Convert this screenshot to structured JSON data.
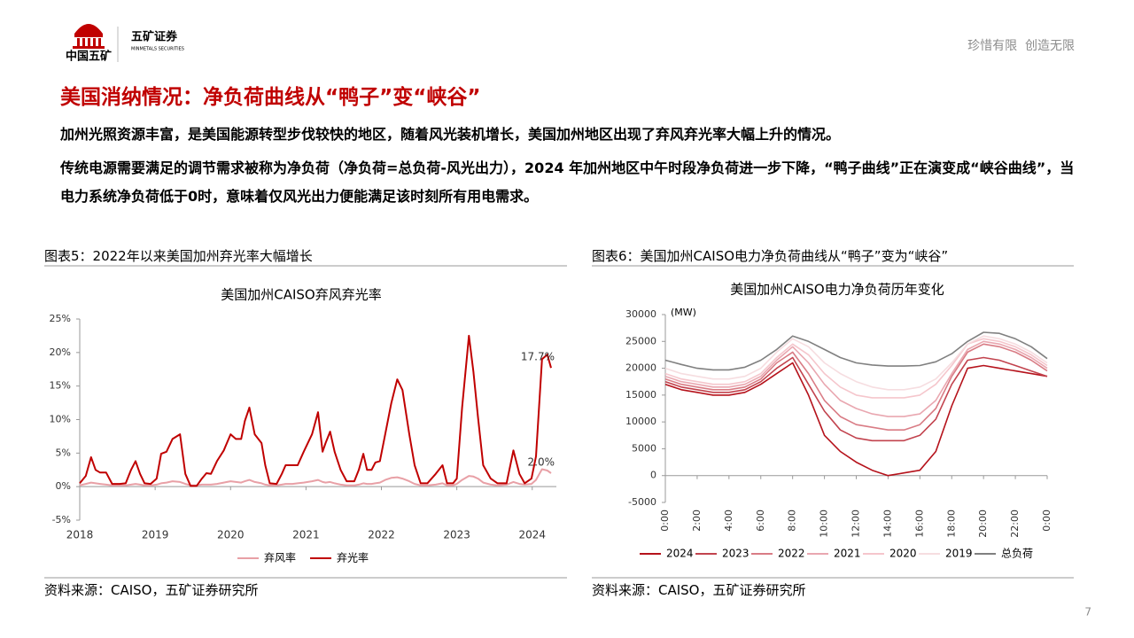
{
  "header": {
    "company": "中国五矿",
    "brand": "五矿证券",
    "brand_en": "MINMETALS SECURITIES",
    "slogan": "珍惜有限  创造无限"
  },
  "title": "美国消纳情况：净负荷曲线从“鸭子”变“峡谷”",
  "paragraphs": [
    "加州光照资源丰富，是美国能源转型步伐较快的地区，随着风光装机增长，美国加州地区出现了弃风弃光率大幅上升的情况。",
    "传统电源需要满足的调节需求被称为净负荷（净负荷=总负荷-风光出力），2024 年加州地区中午时段净负荷进一步下降，“鸭子曲线”正在演变成“峡谷曲线”，当电力系统净负荷低于0时，意味着仅风光出力便能满足该时刻所有用电需求。"
  ],
  "figures": [
    {
      "caption": "图表5：2022年以来美国加州弃光率大幅增长",
      "source": "资料来源：CAISO，五矿证券研究所"
    },
    {
      "caption": "图表6：美国加州CAISO电力净负荷曲线从“鸭子”变为“峡谷”",
      "source": "资料来源：CAISO，五矿证券研究所"
    }
  ],
  "page_number": 7,
  "chart_data": [
    {
      "type": "line",
      "title": "美国加州CAISO弃风弃光率",
      "x": [
        2018.0,
        2018.08,
        2018.15,
        2018.21,
        2018.27,
        2018.35,
        2018.43,
        2018.53,
        2018.61,
        2018.68,
        2018.74,
        2018.8,
        2018.86,
        2018.94,
        2019.02,
        2019.08,
        2019.15,
        2019.23,
        2019.33,
        2019.4,
        2019.47,
        2019.55,
        2019.62,
        2019.68,
        2019.74,
        2019.82,
        2019.91,
        2020.0,
        2020.07,
        2020.14,
        2020.19,
        2020.25,
        2020.32,
        2020.41,
        2020.46,
        2020.52,
        2020.61,
        2020.68,
        2020.73,
        2020.82,
        2020.89,
        2020.97,
        2021.08,
        2021.16,
        2021.22,
        2021.26,
        2021.32,
        2021.38,
        2021.46,
        2021.54,
        2021.64,
        2021.7,
        2021.76,
        2021.81,
        2021.87,
        2021.92,
        2021.98,
        2022.05,
        2022.13,
        2022.21,
        2022.28,
        2022.37,
        2022.44,
        2022.52,
        2022.61,
        2022.72,
        2022.81,
        2022.87,
        2022.95,
        2023.0,
        2023.07,
        2023.16,
        2023.22,
        2023.28,
        2023.35,
        2023.45,
        2023.54,
        2023.66,
        2023.75,
        2023.83,
        2023.9,
        2023.99,
        2024.05,
        2024.13,
        2024.2,
        2024.25
      ],
      "series": [
        {
          "name": "弃风率",
          "color": "#e8a0a6",
          "values": [
            0.2,
            0.4,
            0.6,
            0.5,
            0.4,
            0.3,
            0.2,
            0.2,
            0.2,
            0.3,
            0.4,
            0.3,
            0.2,
            0.2,
            0.3,
            0.5,
            0.6,
            0.8,
            0.7,
            0.4,
            0.2,
            0.2,
            0.3,
            0.3,
            0.3,
            0.4,
            0.6,
            0.8,
            0.7,
            0.6,
            0.8,
            1.0,
            0.7,
            0.5,
            0.3,
            0.2,
            0.2,
            0.3,
            0.4,
            0.4,
            0.5,
            0.6,
            0.8,
            1.0,
            0.7,
            0.6,
            0.7,
            0.5,
            0.3,
            0.2,
            0.2,
            0.3,
            0.5,
            0.4,
            0.4,
            0.5,
            0.6,
            1.0,
            1.3,
            1.4,
            1.2,
            0.8,
            0.4,
            0.2,
            0.2,
            0.3,
            0.5,
            0.2,
            0.2,
            0.4,
            1.0,
            1.6,
            1.5,
            1.2,
            0.6,
            0.3,
            0.2,
            0.3,
            0.7,
            0.4,
            0.3,
            0.4,
            1.0,
            2.6,
            2.4,
            2.0
          ],
          "value_labels": {
            "85": "2.0%"
          }
        },
        {
          "name": "弃光率",
          "color": "#c00000",
          "values": [
            0.5,
            1.6,
            4.4,
            2.5,
            2.1,
            2.1,
            0.4,
            0.4,
            0.5,
            2.5,
            3.8,
            1.9,
            0.5,
            0.4,
            1.2,
            4.9,
            5.2,
            7.1,
            7.8,
            1.9,
            0.1,
            0.1,
            1.2,
            2.0,
            1.9,
            3.8,
            5.4,
            7.8,
            7.1,
            7.1,
            9.8,
            11.8,
            7.8,
            6.5,
            3.2,
            0.5,
            0.4,
            1.9,
            3.2,
            3.2,
            3.2,
            5.2,
            7.8,
            11.1,
            5.2,
            6.5,
            8.2,
            5.2,
            2.5,
            0.8,
            0.8,
            2.5,
            4.9,
            2.5,
            2.5,
            3.6,
            3.8,
            7.8,
            12.4,
            16.0,
            14.4,
            7.8,
            3.2,
            0.5,
            0.5,
            1.9,
            3.2,
            0.5,
            0.5,
            1.2,
            11.8,
            22.5,
            17.1,
            10.4,
            3.2,
            1.2,
            0.5,
            0.5,
            5.4,
            1.9,
            0.5,
            1.2,
            4.5,
            19.0,
            19.7,
            17.7
          ],
          "value_labels": {
            "85": "17.7%"
          }
        }
      ],
      "xlim": [
        2018,
        2024.32
      ],
      "xticks": [
        2018,
        2019,
        2020,
        2021,
        2022,
        2023,
        2024
      ],
      "ylim": [
        -5,
        25
      ],
      "yticks": [
        {
          "value": 25,
          "label": "25%"
        },
        {
          "value": 20,
          "label": "20%"
        },
        {
          "value": 15,
          "label": "15%"
        },
        {
          "value": 10,
          "label": "10%"
        },
        {
          "value": 5,
          "label": "5%"
        },
        {
          "value": 0,
          "label": "0%"
        },
        {
          "value": -5,
          "label": "-5%"
        }
      ],
      "grid": false,
      "legend": "bottom"
    },
    {
      "type": "line",
      "title": "美国加州CAISO电力净负荷历年变化",
      "y_unit": "(MW)",
      "x": [
        0,
        1,
        2,
        3,
        4,
        5,
        6,
        7,
        8,
        9,
        10,
        11,
        12,
        13,
        14,
        15,
        16,
        17,
        18,
        19,
        20,
        21,
        22,
        23,
        24
      ],
      "series": [
        {
          "name": "2024",
          "color": "#b5121b",
          "values": [
            17000,
            16000,
            15500,
            15000,
            15000,
            15500,
            17000,
            19000,
            21000,
            15000,
            7500,
            4500,
            2500,
            1000,
            0,
            500,
            1000,
            4500,
            13000,
            20000,
            20500,
            20000,
            19500,
            19000,
            18500
          ]
        },
        {
          "name": "2023",
          "color": "#c2434e",
          "values": [
            17500,
            16500,
            16000,
            15500,
            15500,
            16000,
            17500,
            20000,
            22000,
            17000,
            12000,
            8500,
            7000,
            6500,
            6500,
            6500,
            7500,
            10500,
            17000,
            21500,
            22000,
            21500,
            20500,
            19500,
            18500
          ]
        },
        {
          "name": "2022",
          "color": "#d97c85",
          "values": [
            18000,
            17000,
            16500,
            16000,
            16000,
            16500,
            18000,
            21000,
            23000,
            19000,
            14000,
            11000,
            9500,
            9000,
            8500,
            8500,
            9500,
            12500,
            18500,
            23000,
            24500,
            24000,
            23000,
            21500,
            19500
          ]
        },
        {
          "name": "2021",
          "color": "#e9a7b0",
          "values": [
            18500,
            17500,
            17000,
            16500,
            16500,
            17000,
            18500,
            21500,
            24000,
            21000,
            17000,
            14000,
            12500,
            11500,
            11000,
            11000,
            11500,
            14000,
            19000,
            23500,
            25000,
            24500,
            23500,
            22000,
            20000
          ]
        },
        {
          "name": "2020",
          "color": "#f5c6cc",
          "values": [
            19000,
            18000,
            17500,
            17000,
            17000,
            17500,
            19000,
            22000,
            24500,
            22500,
            19000,
            16500,
            15000,
            14500,
            14500,
            14500,
            15000,
            17000,
            20500,
            24500,
            25500,
            25000,
            24000,
            22500,
            20500
          ]
        },
        {
          "name": "2019",
          "color": "#f6dde0",
          "values": [
            20000,
            19000,
            18500,
            18000,
            18000,
            18500,
            20000,
            23000,
            25500,
            24000,
            21000,
            19000,
            17500,
            16500,
            16000,
            16000,
            16500,
            18000,
            21000,
            24500,
            26000,
            25500,
            24500,
            23000,
            21000
          ]
        },
        {
          "name": "总负荷",
          "color": "#808080",
          "values": [
            21500,
            20700,
            20000,
            19700,
            19700,
            20200,
            21500,
            23500,
            26000,
            25000,
            23500,
            22000,
            21000,
            20600,
            20400,
            20400,
            20500,
            21200,
            22700,
            25000,
            26700,
            26500,
            25500,
            24000,
            21800
          ]
        }
      ],
      "xlim": [
        0,
        24
      ],
      "xticks": [
        {
          "value": 0,
          "label": "0:00"
        },
        {
          "value": 2,
          "label": "2:00"
        },
        {
          "value": 4,
          "label": "4:00"
        },
        {
          "value": 6,
          "label": "6:00"
        },
        {
          "value": 8,
          "label": "8:00"
        },
        {
          "value": 10,
          "label": "10:00"
        },
        {
          "value": 12,
          "label": "12:00"
        },
        {
          "value": 14,
          "label": "14:00"
        },
        {
          "value": 16,
          "label": "16:00"
        },
        {
          "value": 18,
          "label": "18:00"
        },
        {
          "value": 20,
          "label": "20:00"
        },
        {
          "value": 22,
          "label": "22:00"
        },
        {
          "value": 24,
          "label": "0:00"
        }
      ],
      "ylim": [
        -5000,
        30000
      ],
      "yticks": [
        30000,
        25000,
        20000,
        15000,
        10000,
        5000,
        0,
        -5000
      ],
      "grid": false,
      "legend": "bottom"
    }
  ]
}
